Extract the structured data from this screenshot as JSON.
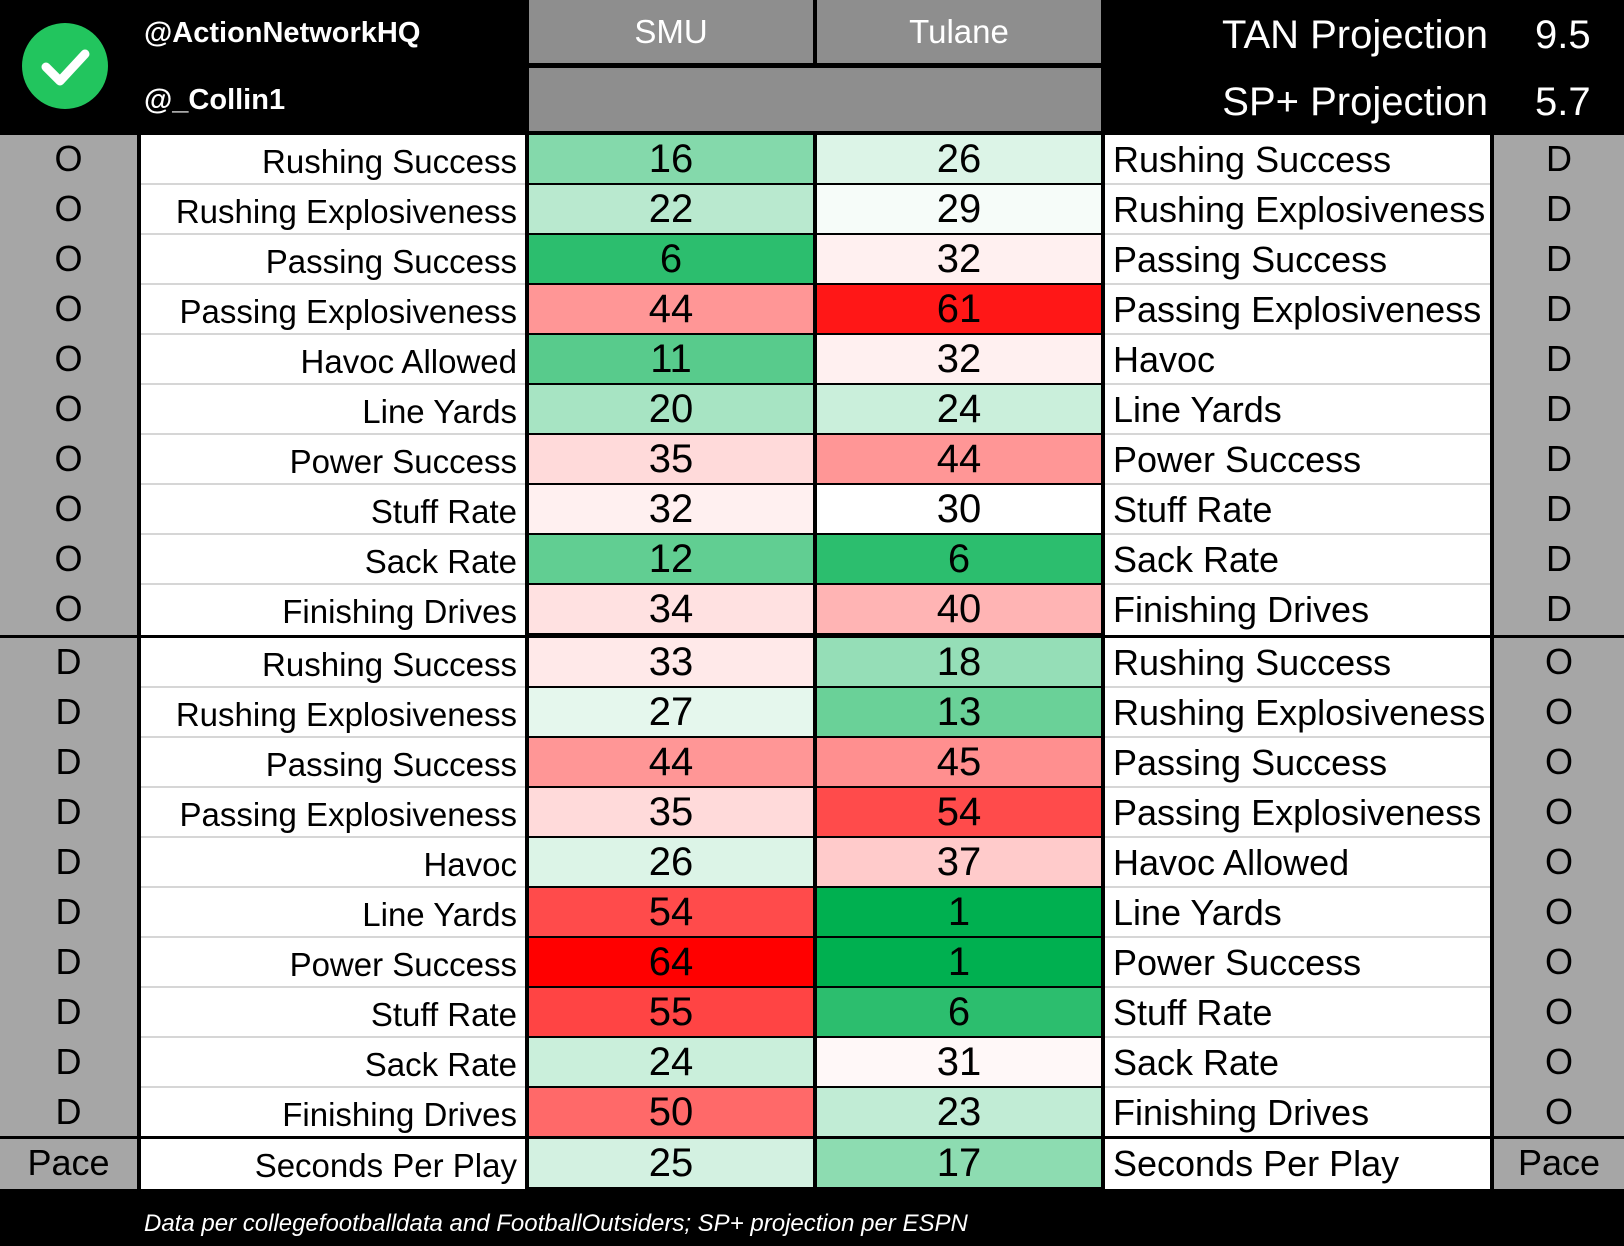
{
  "header": {
    "handles": [
      "@ActionNetworkHQ",
      "@_Collin1"
    ],
    "teams": [
      "SMU",
      "Tulane"
    ],
    "projections": [
      {
        "label": "TAN Projection",
        "value": "9.5"
      },
      {
        "label": "SP+ Projection",
        "value": "5.7"
      }
    ],
    "logo_icon": "check-icon",
    "logo_color": "#22c55e"
  },
  "sections": [
    {
      "left_side": "O",
      "right_side": "D",
      "rows": [
        {
          "left_label": "Rushing Success",
          "smu": 16,
          "tulane": 26,
          "right_label": "Rushing Success"
        },
        {
          "left_label": "Rushing Explosiveness",
          "smu": 22,
          "tulane": 29,
          "right_label": "Rushing Explosiveness"
        },
        {
          "left_label": "Passing Success",
          "smu": 6,
          "tulane": 32,
          "right_label": "Passing Success"
        },
        {
          "left_label": "Passing Explosiveness",
          "smu": 44,
          "tulane": 61,
          "right_label": "Passing Explosiveness"
        },
        {
          "left_label": "Havoc Allowed",
          "smu": 11,
          "tulane": 32,
          "right_label": "Havoc"
        },
        {
          "left_label": "Line Yards",
          "smu": 20,
          "tulane": 24,
          "right_label": "Line Yards"
        },
        {
          "left_label": "Power Success",
          "smu": 35,
          "tulane": 44,
          "right_label": "Power Success"
        },
        {
          "left_label": "Stuff Rate",
          "smu": 32,
          "tulane": 30,
          "right_label": "Stuff Rate"
        },
        {
          "left_label": "Sack Rate",
          "smu": 12,
          "tulane": 6,
          "right_label": "Sack Rate"
        },
        {
          "left_label": "Finishing Drives",
          "smu": 34,
          "tulane": 40,
          "right_label": "Finishing Drives"
        }
      ]
    },
    {
      "left_side": "D",
      "right_side": "O",
      "rows": [
        {
          "left_label": "Rushing Success",
          "smu": 33,
          "tulane": 18,
          "right_label": "Rushing Success"
        },
        {
          "left_label": "Rushing Explosiveness",
          "smu": 27,
          "tulane": 13,
          "right_label": "Rushing Explosiveness"
        },
        {
          "left_label": "Passing Success",
          "smu": 44,
          "tulane": 45,
          "right_label": "Passing Success"
        },
        {
          "left_label": "Passing Explosiveness",
          "smu": 35,
          "tulane": 54,
          "right_label": "Passing Explosiveness"
        },
        {
          "left_label": "Havoc",
          "smu": 26,
          "tulane": 37,
          "right_label": "Havoc Allowed"
        },
        {
          "left_label": "Line Yards",
          "smu": 54,
          "tulane": 1,
          "right_label": "Line Yards"
        },
        {
          "left_label": "Power Success",
          "smu": 64,
          "tulane": 1,
          "right_label": "Power Success"
        },
        {
          "left_label": "Stuff Rate",
          "smu": 55,
          "tulane": 6,
          "right_label": "Stuff Rate"
        },
        {
          "left_label": "Sack Rate",
          "smu": 24,
          "tulane": 31,
          "right_label": "Sack Rate"
        },
        {
          "left_label": "Finishing Drives",
          "smu": 50,
          "tulane": 23,
          "right_label": "Finishing Drives"
        }
      ]
    },
    {
      "left_side": "Pace",
      "right_side": "Pace",
      "rows": [
        {
          "left_label": "Seconds Per Play",
          "smu": 25,
          "tulane": 17,
          "right_label": "Seconds Per Play"
        }
      ]
    }
  ],
  "footer": "Data per collegefootballdata and FootballOutsiders; SP+ projection per ESPN"
}
